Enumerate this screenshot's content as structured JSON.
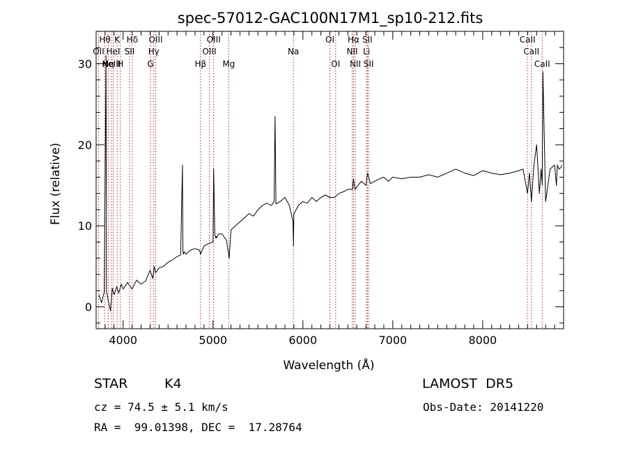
{
  "chart_data": {
    "type": "line",
    "title": "spec-57012-GAC100N17M1_sp10-212.fits",
    "xlabel": "Wavelength (Å)",
    "ylabel": "Flux (relative)",
    "xlim": [
      3700,
      8900
    ],
    "ylim": [
      -2.7,
      34
    ],
    "x_ticks": [
      4000,
      5000,
      6000,
      7000,
      8000
    ],
    "y_ticks": [
      0,
      10,
      20,
      30
    ],
    "grid": false,
    "line_color": "#000000",
    "marker_color": "#b22222",
    "series": [
      {
        "x": [
          3730,
          3760,
          3790,
          3810,
          3815,
          3830,
          3860,
          3880,
          3900,
          3930,
          3950,
          3980,
          4000,
          4050,
          4100,
          4150,
          4200,
          4250,
          4300,
          4330,
          4345,
          4360,
          4400,
          4450,
          4500,
          4550,
          4600,
          4640,
          4660,
          4665,
          4670,
          4680,
          4700,
          4750,
          4800,
          4850,
          4862,
          4900,
          4950,
          5000,
          5007,
          5020,
          5030,
          5035,
          5040,
          5060,
          5100,
          5150,
          5180,
          5200,
          5250,
          5300,
          5350,
          5400,
          5450,
          5500,
          5550,
          5600,
          5650,
          5680,
          5690,
          5700,
          5750,
          5800,
          5850,
          5890,
          5895,
          5900,
          5950,
          6000,
          6050,
          6100,
          6150,
          6200,
          6250,
          6300,
          6350,
          6400,
          6450,
          6500,
          6550,
          6563,
          6580,
          6600,
          6650,
          6700,
          6720,
          6750,
          6800,
          6850,
          6900,
          6950,
          7000,
          7100,
          7200,
          7300,
          7400,
          7500,
          7600,
          7700,
          7800,
          7900,
          8000,
          8100,
          8200,
          8300,
          8400,
          8450,
          8498,
          8520,
          8542,
          8570,
          8600,
          8630,
          8650,
          8662,
          8670,
          8700,
          8750,
          8800,
          8820,
          8830,
          8850,
          8870,
          8880
        ],
        "y": [
          1.5,
          0.5,
          1.8,
          31,
          2,
          1,
          -0.5,
          2.3,
          1.5,
          2.5,
          1.7,
          2.8,
          2.2,
          3,
          2.2,
          3.3,
          2.8,
          3.2,
          4.5,
          3.5,
          5,
          4.2,
          4.8,
          5,
          5.5,
          5.8,
          6.2,
          6.4,
          17.5,
          7,
          6.5,
          6.8,
          6.5,
          7,
          7.2,
          7,
          6.5,
          7.5,
          7.8,
          8,
          17,
          9,
          8.5,
          8.7,
          8.5,
          9,
          9,
          8.2,
          6,
          9.5,
          10,
          10.5,
          11,
          11.5,
          11.2,
          12,
          12.5,
          12.8,
          12.5,
          13,
          23.5,
          12.7,
          13,
          13.5,
          12.5,
          10.5,
          7.5,
          11.5,
          12.5,
          13,
          12.8,
          13.5,
          13,
          13.5,
          13.8,
          13.5,
          13.5,
          14,
          14.2,
          14.5,
          14.5,
          15.8,
          14.5,
          14.8,
          15.5,
          15,
          16.5,
          15.2,
          15.5,
          15.8,
          16,
          15.5,
          16,
          15.8,
          16,
          16,
          16.3,
          16,
          16.5,
          17,
          16.5,
          16.2,
          16.8,
          16.5,
          16.3,
          16.5,
          16.8,
          17,
          14,
          16.5,
          13,
          17.5,
          20,
          14,
          17,
          15,
          29,
          13,
          17,
          17.5,
          15,
          17.5,
          17,
          17.2,
          17.5
        ]
      }
    ],
    "line_markers": [
      {
        "wave": 3797,
        "label": "Hθ",
        "row": 0
      },
      {
        "wave": 3727,
        "label": "OII",
        "row": 1
      },
      {
        "wave": 3835,
        "label": "Hη",
        "row": 2
      },
      {
        "wave": 3869,
        "label": "NeIII",
        "row": 2
      },
      {
        "wave": 3934,
        "label": "K",
        "row": 0
      },
      {
        "wave": 3889,
        "label": "HeI",
        "row": 1
      },
      {
        "wave": 3969,
        "label": "H",
        "row": 2
      },
      {
        "wave": 4102,
        "label": "Hδ",
        "row": 0
      },
      {
        "wave": 4072,
        "label": "SII",
        "row": 1
      },
      {
        "wave": 4363,
        "label": "OIII",
        "row": 0
      },
      {
        "wave": 4341,
        "label": "Hγ",
        "row": 1
      },
      {
        "wave": 4305,
        "label": "G",
        "row": 2
      },
      {
        "wave": 5007,
        "label": "OIII",
        "row": 0
      },
      {
        "wave": 4959,
        "label": "OIII",
        "row": 1
      },
      {
        "wave": 4861,
        "label": "Hβ",
        "row": 2
      },
      {
        "wave": 5175,
        "label": "Mg",
        "row": 2
      },
      {
        "wave": 5894,
        "label": "Na",
        "row": 1
      },
      {
        "wave": 6300,
        "label": "OI",
        "row": 0
      },
      {
        "wave": 6364,
        "label": "OI",
        "row": 2
      },
      {
        "wave": 6563,
        "label": "Hα",
        "row": 0
      },
      {
        "wave": 6548,
        "label": "NII",
        "row": 1
      },
      {
        "wave": 6583,
        "label": "NII",
        "row": 2
      },
      {
        "wave": 6717,
        "label": "SII",
        "row": 0
      },
      {
        "wave": 6708,
        "label": "Li",
        "row": 1
      },
      {
        "wave": 6731,
        "label": "SII",
        "row": 2
      },
      {
        "wave": 8498,
        "label": "CaII",
        "row": 0
      },
      {
        "wave": 8542,
        "label": "CaII",
        "row": 1
      },
      {
        "wave": 8662,
        "label": "CaII",
        "row": 2
      }
    ]
  },
  "info": {
    "class": "STAR",
    "subclass": "K4",
    "survey": "LAMOST  DR5",
    "cz": "cz = 74.5 ± 5.1 km/s",
    "obs_date": "Obs-Date: 20141220",
    "coords": "RA =  99.01398, DEC =  17.28764"
  }
}
